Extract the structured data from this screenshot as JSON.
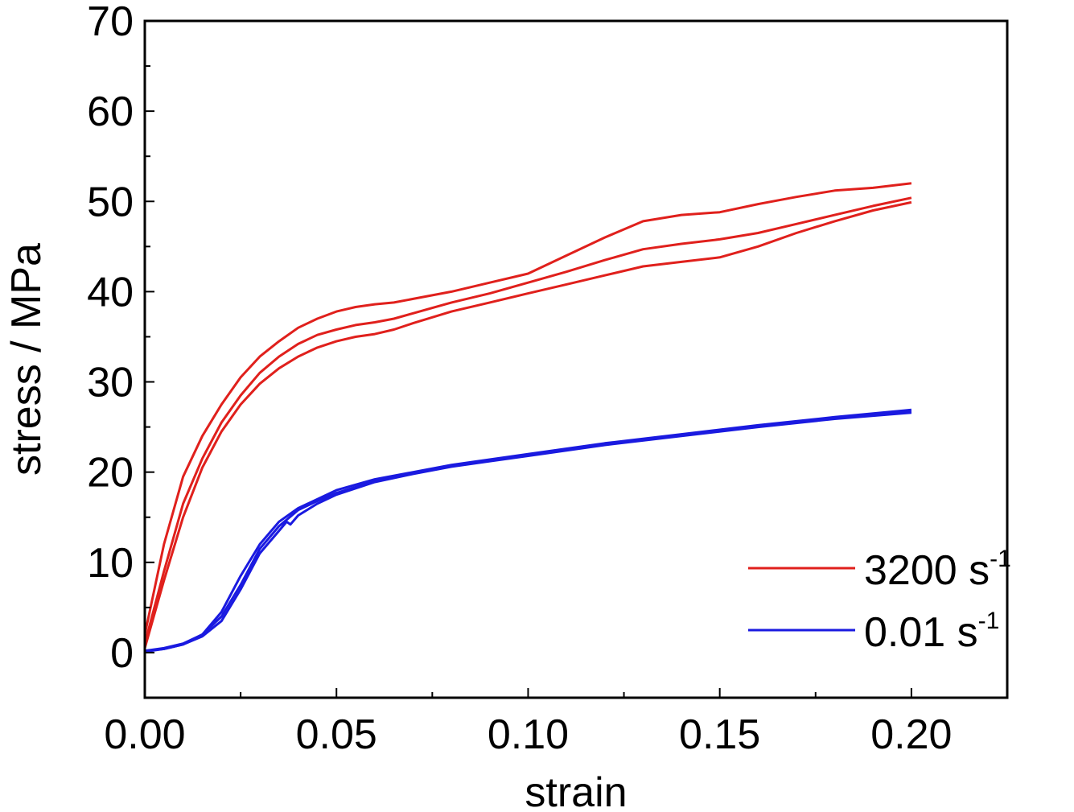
{
  "chart_data": {
    "type": "line",
    "xlabel": "strain",
    "ylabel": "stress / MPa",
    "xlim": [
      0,
      0.225
    ],
    "ylim": [
      -5,
      70
    ],
    "x_ticks": [
      "0.00",
      "0.05",
      "0.10",
      "0.15",
      "0.20"
    ],
    "y_ticks": [
      "0",
      "10",
      "20",
      "30",
      "40",
      "50",
      "60",
      "70"
    ],
    "grid": false,
    "legend_position": "bottom-right",
    "legend": [
      {
        "label": "3200 s",
        "superscript": "-1",
        "color": "#e0201c"
      },
      {
        "label": "0.01 s",
        "superscript": "-1",
        "color": "#1a1ae0"
      }
    ],
    "series": [
      {
        "group": "3200 s-1",
        "color": "#e0201c",
        "x": [
          0,
          0.005,
          0.01,
          0.015,
          0.02,
          0.025,
          0.03,
          0.035,
          0.04,
          0.045,
          0.05,
          0.055,
          0.06,
          0.065,
          0.07,
          0.08,
          0.09,
          0.1,
          0.11,
          0.12,
          0.13,
          0.14,
          0.15,
          0.16,
          0.17,
          0.18,
          0.19,
          0.2
        ],
        "y": [
          2,
          12,
          19.5,
          24,
          27.5,
          30.5,
          32.8,
          34.5,
          36,
          37,
          37.8,
          38.3,
          38.6,
          38.8,
          39.2,
          40,
          41,
          42,
          44,
          46,
          47.8,
          48.5,
          48.8,
          49.7,
          50.5,
          51.2,
          51.5,
          52
        ]
      },
      {
        "group": "3200 s-1",
        "color": "#e0201c",
        "x": [
          0,
          0.005,
          0.01,
          0.015,
          0.02,
          0.025,
          0.03,
          0.035,
          0.04,
          0.045,
          0.05,
          0.055,
          0.06,
          0.065,
          0.07,
          0.08,
          0.09,
          0.1,
          0.11,
          0.12,
          0.13,
          0.14,
          0.15,
          0.16,
          0.17,
          0.18,
          0.19,
          0.2
        ],
        "y": [
          1,
          9,
          16.5,
          21.5,
          25.5,
          28.5,
          31,
          32.8,
          34.2,
          35.2,
          35.8,
          36.3,
          36.6,
          37,
          37.6,
          38.8,
          39.8,
          41,
          42.2,
          43.5,
          44.7,
          45.3,
          45.8,
          46.5,
          47.5,
          48.5,
          49.5,
          50.4
        ]
      },
      {
        "group": "3200 s-1",
        "color": "#e0201c",
        "x": [
          0,
          0.005,
          0.01,
          0.015,
          0.02,
          0.025,
          0.03,
          0.035,
          0.04,
          0.045,
          0.05,
          0.055,
          0.06,
          0.065,
          0.07,
          0.08,
          0.09,
          0.1,
          0.11,
          0.12,
          0.13,
          0.14,
          0.15,
          0.16,
          0.17,
          0.18,
          0.19,
          0.2
        ],
        "y": [
          0.5,
          8,
          15,
          20.5,
          24.5,
          27.5,
          29.8,
          31.5,
          32.8,
          33.8,
          34.5,
          35,
          35.3,
          35.8,
          36.5,
          37.8,
          38.8,
          39.8,
          40.8,
          41.8,
          42.8,
          43.3,
          43.8,
          45,
          46.5,
          47.8,
          49,
          49.9
        ]
      },
      {
        "group": "0.01 s-1",
        "color": "#1a1ae0",
        "x": [
          0,
          0.005,
          0.01,
          0.015,
          0.02,
          0.025,
          0.03,
          0.035,
          0.04,
          0.045,
          0.05,
          0.06,
          0.07,
          0.08,
          0.09,
          0.1,
          0.12,
          0.14,
          0.16,
          0.18,
          0.2
        ],
        "y": [
          0.2,
          0.5,
          1,
          2,
          4.5,
          8.5,
          12,
          14.5,
          16,
          17,
          18,
          19.2,
          20,
          20.8,
          21.4,
          22,
          23.2,
          24.2,
          25.2,
          26.1,
          26.9
        ]
      },
      {
        "group": "0.01 s-1",
        "color": "#1a1ae0",
        "x": [
          0,
          0.005,
          0.01,
          0.015,
          0.02,
          0.025,
          0.03,
          0.035,
          0.04,
          0.045,
          0.05,
          0.06,
          0.07,
          0.08,
          0.09,
          0.1,
          0.12,
          0.14,
          0.16,
          0.18,
          0.2
        ],
        "y": [
          0.2,
          0.4,
          0.9,
          2,
          4,
          7.5,
          11.5,
          14,
          15.8,
          16.8,
          17.7,
          19,
          19.9,
          20.7,
          21.3,
          21.9,
          23.1,
          24.1,
          25.1,
          26,
          26.7
        ]
      },
      {
        "group": "0.01 s-1",
        "color": "#1a1ae0",
        "x": [
          0,
          0.005,
          0.01,
          0.015,
          0.02,
          0.025,
          0.03,
          0.035,
          0.037,
          0.038,
          0.04,
          0.045,
          0.05,
          0.06,
          0.07,
          0.08,
          0.09,
          0.1,
          0.12,
          0.14,
          0.16,
          0.18,
          0.2
        ],
        "y": [
          0.1,
          0.4,
          0.9,
          1.8,
          3.5,
          7,
          11,
          13.5,
          14.5,
          14.2,
          15.2,
          16.5,
          17.5,
          18.9,
          19.8,
          20.6,
          21.2,
          21.8,
          23,
          24,
          25,
          25.9,
          26.6
        ]
      }
    ]
  }
}
